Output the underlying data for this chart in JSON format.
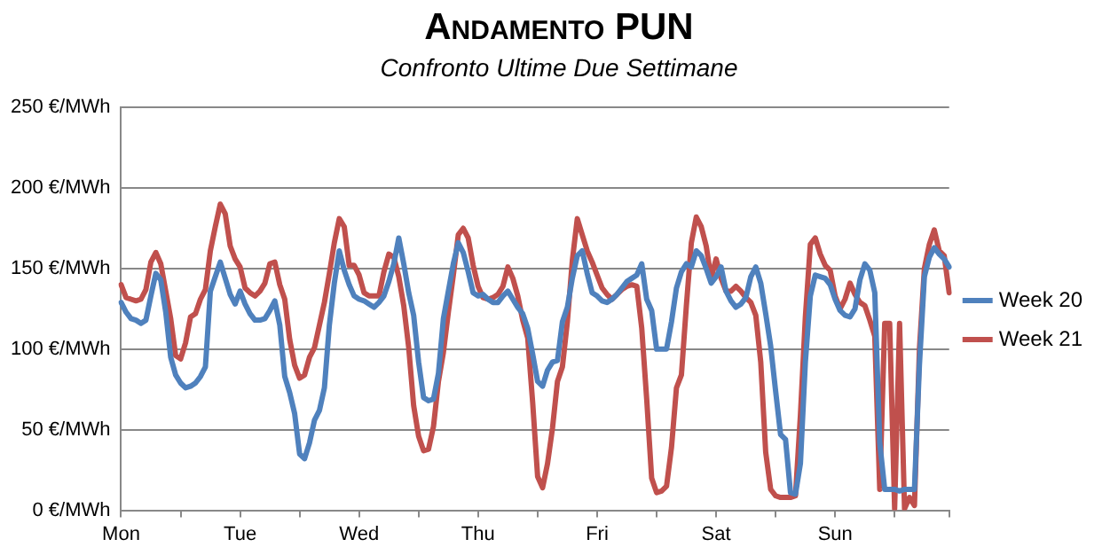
{
  "chart_data": {
    "type": "line",
    "title": "Andamento PUN",
    "subtitle": "Confronto Ultime Due Settimane",
    "categories": [
      "Mon",
      null,
      null,
      null,
      null,
      null,
      null,
      null,
      null,
      null,
      null,
      null,
      null,
      null,
      null,
      null,
      null,
      null,
      null,
      null,
      null,
      null,
      null,
      null,
      "Tue",
      null,
      null,
      null,
      null,
      null,
      null,
      null,
      null,
      null,
      null,
      null,
      null,
      null,
      null,
      null,
      null,
      null,
      null,
      null,
      null,
      null,
      null,
      null,
      "Wed",
      null,
      null,
      null,
      null,
      null,
      null,
      null,
      null,
      null,
      null,
      null,
      null,
      null,
      null,
      null,
      null,
      null,
      null,
      null,
      null,
      null,
      null,
      null,
      "Thu",
      null,
      null,
      null,
      null,
      null,
      null,
      null,
      null,
      null,
      null,
      null,
      null,
      null,
      null,
      null,
      null,
      null,
      null,
      null,
      null,
      null,
      null,
      null,
      "Fri",
      null,
      null,
      null,
      null,
      null,
      null,
      null,
      null,
      null,
      null,
      null,
      null,
      null,
      null,
      null,
      null,
      null,
      null,
      null,
      null,
      null,
      null,
      null,
      "Sat",
      null,
      null,
      null,
      null,
      null,
      null,
      null,
      null,
      null,
      null,
      null,
      null,
      null,
      null,
      null,
      null,
      null,
      null,
      null,
      null,
      null,
      null,
      null,
      "Sun",
      null,
      null,
      null,
      null,
      null,
      null,
      null,
      null,
      null,
      null,
      null,
      null,
      null,
      null,
      null,
      null,
      null,
      null,
      null,
      null,
      null,
      null,
      null
    ],
    "ylim": [
      0,
      250
    ],
    "yticks": [
      {
        "value": 0,
        "label": "0 €/MWh"
      },
      {
        "value": 50,
        "label": "50 €/MWh"
      },
      {
        "value": 100,
        "label": "100 €/MWh"
      },
      {
        "value": 150,
        "label": "150 €/MWh"
      },
      {
        "value": 200,
        "label": "200 €/MWh"
      },
      {
        "value": 250,
        "label": "250 €/MWh"
      }
    ],
    "grid": "y",
    "legend": "right",
    "marker": "none",
    "line_style": "solid",
    "series": [
      {
        "name": "Week 20",
        "color": "#4f81bd",
        "values": [
          129,
          123,
          119,
          118,
          116,
          118,
          133,
          147,
          143,
          123,
          95,
          84,
          79,
          76,
          77,
          79,
          83,
          89,
          136,
          145,
          154,
          144,
          134,
          128,
          136,
          128,
          122,
          118,
          118,
          119,
          124,
          130,
          115,
          83,
          73,
          60,
          35,
          32,
          42,
          56,
          62,
          76,
          115,
          141,
          161,
          149,
          140,
          133,
          131,
          130,
          128,
          126,
          129,
          133,
          142,
          153,
          169,
          153,
          135,
          121,
          92,
          70,
          68,
          69,
          85,
          119,
          136,
          153,
          166,
          160,
          148,
          135,
          133,
          134,
          131,
          129,
          129,
          133,
          136,
          131,
          126,
          122,
          113,
          97,
          80,
          77,
          87,
          92,
          93,
          117,
          126,
          144,
          158,
          161,
          147,
          135,
          133,
          130,
          129,
          131,
          134,
          138,
          142,
          144,
          146,
          153,
          131,
          124,
          100,
          100,
          100,
          117,
          138,
          148,
          153,
          151,
          161,
          158,
          150,
          141,
          145,
          151,
          136,
          130,
          126,
          128,
          132,
          145,
          151,
          141,
          122,
          102,
          74,
          47,
          44,
          11,
          10,
          29,
          92,
          133,
          146,
          145,
          144,
          140,
          131,
          124,
          121,
          120,
          125,
          143,
          153,
          149,
          135,
          42,
          13,
          13,
          13,
          12,
          13,
          13,
          13,
          90,
          145,
          157,
          163,
          159,
          156,
          151
        ]
      },
      {
        "name": "Week 21",
        "color": "#c0504d",
        "values": [
          140,
          132,
          131,
          130,
          131,
          137,
          154,
          160,
          153,
          136,
          119,
          96,
          94,
          104,
          120,
          122,
          131,
          137,
          161,
          176,
          190,
          184,
          164,
          156,
          151,
          138,
          135,
          133,
          136,
          141,
          153,
          154,
          140,
          131,
          106,
          90,
          82,
          84,
          95,
          101,
          115,
          129,
          147,
          166,
          181,
          176,
          152,
          152,
          146,
          135,
          133,
          133,
          133,
          148,
          159,
          157,
          145,
          127,
          101,
          65,
          46,
          37,
          38,
          52,
          80,
          98,
          123,
          146,
          171,
          175,
          169,
          152,
          139,
          132,
          131,
          132,
          134,
          139,
          151,
          144,
          133,
          118,
          107,
          67,
          21,
          14,
          29,
          51,
          80,
          89,
          117,
          155,
          181,
          171,
          161,
          154,
          146,
          138,
          134,
          131,
          134,
          137,
          139,
          140,
          139,
          113,
          69,
          20,
          11,
          12,
          15,
          39,
          76,
          84,
          127,
          166,
          182,
          176,
          164,
          144,
          156,
          144,
          136,
          136,
          139,
          136,
          132,
          129,
          121,
          92,
          36,
          13,
          9,
          8,
          8,
          8,
          9,
          59,
          120,
          165,
          169,
          159,
          152,
          149,
          133,
          125,
          131,
          141,
          134,
          129,
          127,
          118,
          108,
          13,
          116,
          116,
          1,
          116,
          1,
          8,
          3,
          100,
          150,
          165,
          174,
          161,
          158,
          135
        ]
      }
    ]
  }
}
